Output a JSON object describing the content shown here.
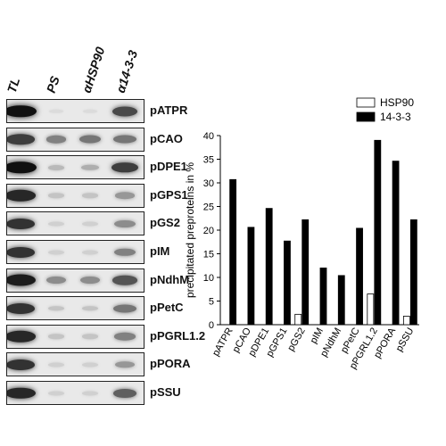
{
  "blot": {
    "lanes": [
      "TL",
      "PS",
      "αHSP90",
      "α14-3-3"
    ],
    "rows": [
      {
        "label": "pATPR",
        "intensity": [
          0.95,
          0.05,
          0.05,
          0.7
        ]
      },
      {
        "label": "pCAO",
        "intensity": [
          0.75,
          0.45,
          0.5,
          0.5
        ]
      },
      {
        "label": "pDPE1",
        "intensity": [
          0.95,
          0.2,
          0.25,
          0.75
        ]
      },
      {
        "label": "pGPS1",
        "intensity": [
          0.85,
          0.15,
          0.15,
          0.35
        ]
      },
      {
        "label": "pGS2",
        "intensity": [
          0.8,
          0.1,
          0.1,
          0.4
        ]
      },
      {
        "label": "pIM",
        "intensity": [
          0.8,
          0.1,
          0.1,
          0.45
        ]
      },
      {
        "label": "pNdhM",
        "intensity": [
          0.9,
          0.4,
          0.4,
          0.65
        ]
      },
      {
        "label": "pPetC",
        "intensity": [
          0.8,
          0.15,
          0.15,
          0.5
        ]
      },
      {
        "label": "pPGRL1.2",
        "intensity": [
          0.85,
          0.15,
          0.15,
          0.45
        ]
      },
      {
        "label": "pPORA",
        "intensity": [
          0.8,
          0.1,
          0.1,
          0.35
        ]
      },
      {
        "label": "pSSU",
        "intensity": [
          0.85,
          0.1,
          0.1,
          0.6
        ]
      }
    ]
  },
  "chart_data": {
    "type": "bar",
    "ylabel": "precipitated preproteins in %",
    "ylim": [
      0,
      40
    ],
    "yticks": [
      0,
      5,
      10,
      15,
      20,
      25,
      30,
      35,
      40
    ],
    "categories": [
      "pATPR",
      "pCAO",
      "pDPE1",
      "pGPS1",
      "pGS2",
      "pIM",
      "pNdhM",
      "pPetC",
      "pPGRL1.2",
      "pPORA",
      "pSSU"
    ],
    "series": [
      {
        "name": "HSP90",
        "color": "#ffffff",
        "values": [
          0,
          0,
          0,
          0,
          2.2,
          0,
          0,
          0,
          6.5,
          0,
          1.8
        ]
      },
      {
        "name": "14-3-3",
        "color": "#000000",
        "values": [
          30.7,
          20.6,
          24.6,
          17.7,
          22.2,
          12.0,
          10.4,
          20.4,
          39.0,
          34.6,
          22.2
        ]
      }
    ],
    "legend": "top-right",
    "grid": false
  }
}
